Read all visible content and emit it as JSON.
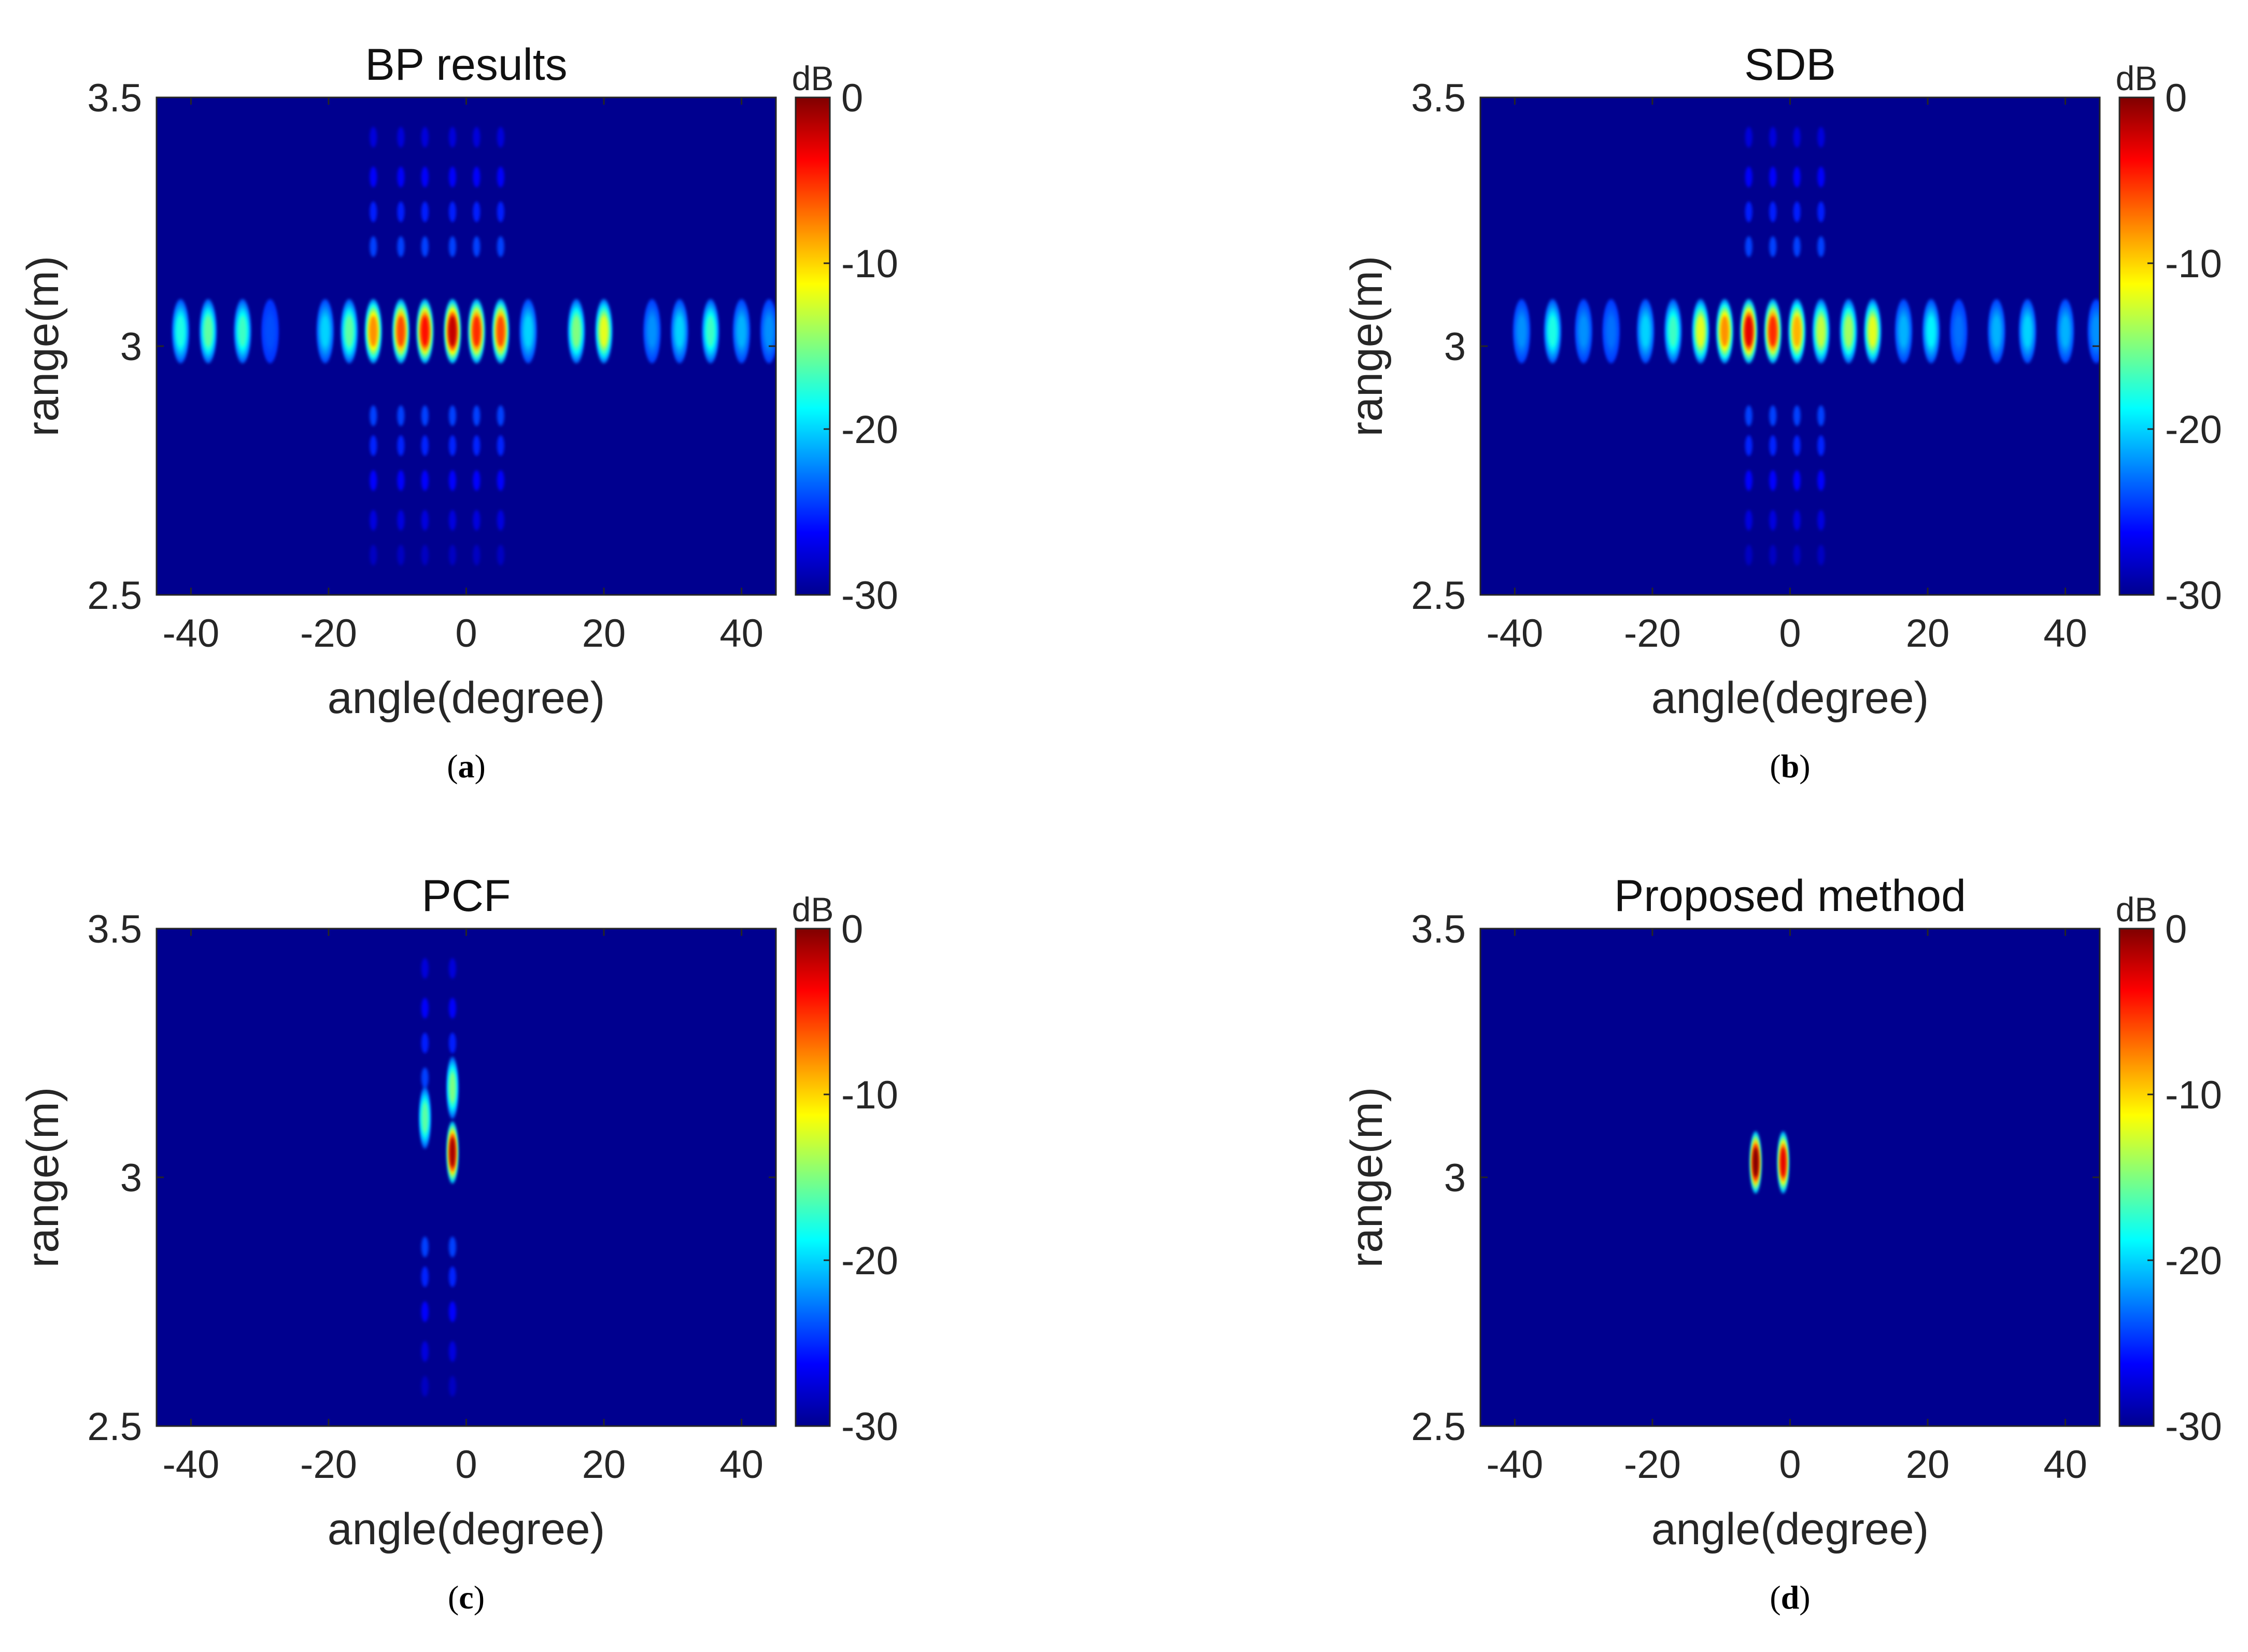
{
  "chart_data": [
    {
      "type": "heatmap",
      "title": "BP results",
      "caption_letter": "a",
      "xlabel": "angle(degree)",
      "ylabel": "range(m)",
      "xlim": [
        -45,
        45
      ],
      "ylim": [
        2.5,
        3.5
      ],
      "xticks": [
        "-40",
        "-20",
        "0",
        "20",
        "40"
      ],
      "yticks": [
        "3.5",
        "3",
        "2.5"
      ],
      "colorbar": {
        "label": "dB",
        "range": [
          -30,
          0
        ],
        "ticks": [
          "0",
          "-10",
          "-20",
          "-30"
        ]
      },
      "lobes": [
        {
          "angle": -41.5,
          "range": 3.03,
          "level_db": -18
        },
        {
          "angle": -37.5,
          "range": 3.03,
          "level_db": -16
        },
        {
          "angle": -32.5,
          "range": 3.03,
          "level_db": -17
        },
        {
          "angle": -28.5,
          "range": 3.03,
          "level_db": -24
        },
        {
          "angle": -20.5,
          "range": 3.03,
          "level_db": -20
        },
        {
          "angle": -17.0,
          "range": 3.03,
          "level_db": -16
        },
        {
          "angle": -13.5,
          "range": 3.03,
          "level_db": -8
        },
        {
          "angle": -9.5,
          "range": 3.03,
          "level_db": -6
        },
        {
          "angle": -6.0,
          "range": 3.03,
          "level_db": -4
        },
        {
          "angle": -2.0,
          "range": 3.03,
          "level_db": -2
        },
        {
          "angle": 1.5,
          "range": 3.03,
          "level_db": -5
        },
        {
          "angle": 5.0,
          "range": 3.03,
          "level_db": -6
        },
        {
          "angle": 9.0,
          "range": 3.03,
          "level_db": -20
        },
        {
          "angle": 16.0,
          "range": 3.03,
          "level_db": -15
        },
        {
          "angle": 20.0,
          "range": 3.03,
          "level_db": -12
        },
        {
          "angle": 27.0,
          "range": 3.03,
          "level_db": -22
        },
        {
          "angle": 31.0,
          "range": 3.03,
          "level_db": -20
        },
        {
          "angle": 35.5,
          "range": 3.03,
          "level_db": -17
        },
        {
          "angle": 40.0,
          "range": 3.03,
          "level_db": -21
        },
        {
          "angle": 44.0,
          "range": 3.03,
          "level_db": -22
        }
      ],
      "vertical_sidelobes": [
        -13.5,
        -9.5,
        -6.0,
        -2.0,
        1.5,
        5.0
      ]
    },
    {
      "type": "heatmap",
      "title": "SDB",
      "caption_letter": "b",
      "xlabel": "angle(degree)",
      "ylabel": "range(m)",
      "xlim": [
        -45,
        45
      ],
      "ylim": [
        2.5,
        3.5
      ],
      "xticks": [
        "-40",
        "-20",
        "0",
        "20",
        "40"
      ],
      "yticks": [
        "3.5",
        "3",
        "2.5"
      ],
      "colorbar": {
        "label": "dB",
        "range": [
          -30,
          0
        ],
        "ticks": [
          "0",
          "-10",
          "-20",
          "-30"
        ]
      },
      "lobes": [
        {
          "angle": -39.0,
          "range": 3.03,
          "level_db": -22
        },
        {
          "angle": -34.5,
          "range": 3.03,
          "level_db": -18
        },
        {
          "angle": -30.0,
          "range": 3.03,
          "level_db": -22
        },
        {
          "angle": -26.0,
          "range": 3.03,
          "level_db": -23
        },
        {
          "angle": -21.0,
          "range": 3.03,
          "level_db": -20
        },
        {
          "angle": -17.0,
          "range": 3.03,
          "level_db": -17
        },
        {
          "angle": -13.0,
          "range": 3.03,
          "level_db": -12
        },
        {
          "angle": -9.5,
          "range": 3.03,
          "level_db": -8
        },
        {
          "angle": -6.0,
          "range": 3.03,
          "level_db": -3
        },
        {
          "angle": -2.5,
          "range": 3.03,
          "level_db": -5
        },
        {
          "angle": 1.0,
          "range": 3.03,
          "level_db": -9
        },
        {
          "angle": 4.5,
          "range": 3.03,
          "level_db": -13
        },
        {
          "angle": 8.5,
          "range": 3.03,
          "level_db": -14
        },
        {
          "angle": 12.0,
          "range": 3.03,
          "level_db": -12
        },
        {
          "angle": 16.5,
          "range": 3.03,
          "level_db": -21
        },
        {
          "angle": 20.5,
          "range": 3.03,
          "level_db": -19
        },
        {
          "angle": 24.5,
          "range": 3.03,
          "level_db": -23
        },
        {
          "angle": 30.0,
          "range": 3.03,
          "level_db": -21
        },
        {
          "angle": 34.5,
          "range": 3.03,
          "level_db": -20
        },
        {
          "angle": 40.0,
          "range": 3.03,
          "level_db": -21
        },
        {
          "angle": 44.5,
          "range": 3.03,
          "level_db": -22
        }
      ],
      "vertical_sidelobes": [
        -6.0,
        -2.5,
        1.0,
        4.5
      ]
    },
    {
      "type": "heatmap",
      "title": "PCF",
      "caption_letter": "c",
      "xlabel": "angle(degree)",
      "ylabel": "range(m)",
      "xlim": [
        -45,
        45
      ],
      "ylim": [
        2.5,
        3.5
      ],
      "xticks": [
        "-40",
        "-20",
        "0",
        "20",
        "40"
      ],
      "yticks": [
        "3.5",
        "3",
        "2.5"
      ],
      "colorbar": {
        "label": "dB",
        "range": [
          -30,
          0
        ],
        "ticks": [
          "0",
          "-10",
          "-20",
          "-30"
        ]
      },
      "lobes": [
        {
          "angle": -6.0,
          "range": 3.12,
          "level_db": -16
        },
        {
          "angle": -2.0,
          "range": 3.05,
          "level_db": -1
        },
        {
          "angle": -2.0,
          "range": 3.18,
          "level_db": -15
        }
      ],
      "vertical_sidelobes": [
        -6.0,
        -2.0
      ]
    },
    {
      "type": "heatmap",
      "title": "Proposed method",
      "caption_letter": "d",
      "xlabel": "angle(degree)",
      "ylabel": "range(m)",
      "xlim": [
        -45,
        45
      ],
      "ylim": [
        2.5,
        3.5
      ],
      "xticks": [
        "-40",
        "-20",
        "0",
        "20",
        "40"
      ],
      "yticks": [
        "3.5",
        "3",
        "2.5"
      ],
      "colorbar": {
        "label": "dB",
        "range": [
          -30,
          0
        ],
        "ticks": [
          "0",
          "-10",
          "-20",
          "-30"
        ]
      },
      "lobes": [
        {
          "angle": -5.0,
          "range": 3.03,
          "level_db": 0
        },
        {
          "angle": -1.0,
          "range": 3.03,
          "level_db": -3
        }
      ],
      "vertical_sidelobes": []
    }
  ],
  "colors": {
    "jet_low": "#00008f",
    "jet_high": "#800000",
    "text": "#262626"
  }
}
